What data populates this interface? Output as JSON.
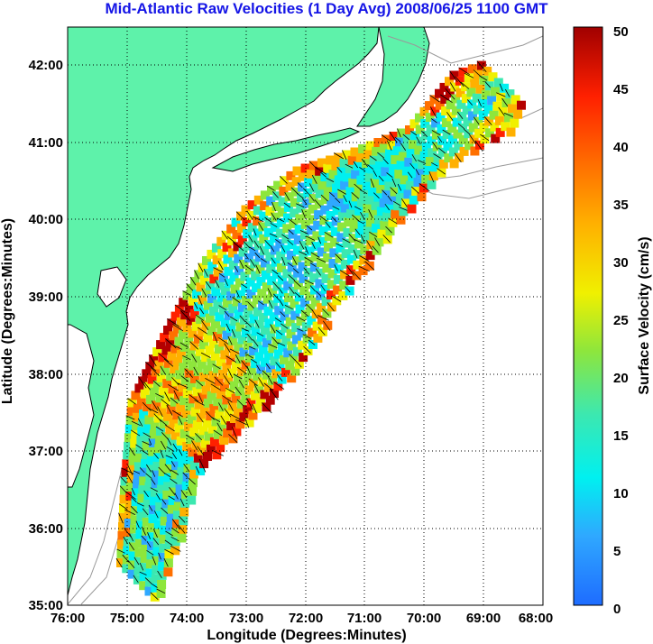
{
  "title": "Mid-Atlantic Raw Velocities (1 Day Avg) 2008/06/25 1100 GMT",
  "axes": {
    "xlabel": "Longitude (Degrees:Minutes)",
    "ylabel": "Latitude (Degrees:Minutes)",
    "xticks": [
      "76:00",
      "75:00",
      "74:00",
      "73:00",
      "72:00",
      "71:00",
      "70:00",
      "69:00",
      "68:00"
    ],
    "yticks": [
      "35:00",
      "36:00",
      "37:00",
      "38:00",
      "39:00",
      "40:00",
      "41:00",
      "42:00"
    ]
  },
  "colorbar": {
    "label": "Surface Velocity (cm/s)",
    "ticks": [
      "0",
      "5",
      "10",
      "15",
      "20",
      "25",
      "30",
      "35",
      "40",
      "45",
      "50"
    ],
    "colors": [
      "#1e6cff",
      "#2fa8ff",
      "#00f0f0",
      "#3ce8b0",
      "#8ee63c",
      "#f0f000",
      "#ffb000",
      "#ff7000",
      "#ff2000",
      "#b40000"
    ]
  },
  "colors": {
    "land": "#5ef2aa",
    "contour": "#999999",
    "title": "#1515e6"
  }
}
